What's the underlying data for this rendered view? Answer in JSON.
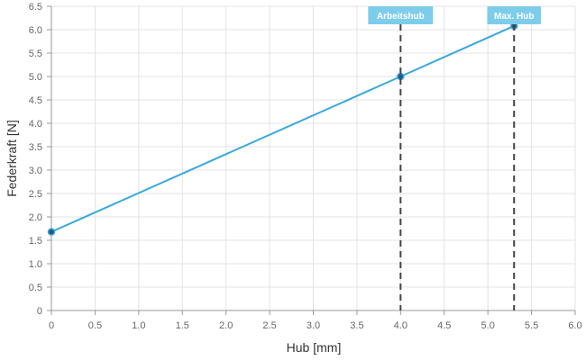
{
  "chart_data": {
    "type": "line",
    "xlabel": "Hub [mm]",
    "ylabel": "Federkraft [N]",
    "xlim": [
      0,
      6.0
    ],
    "ylim": [
      0,
      6.5
    ],
    "x_ticks": [
      "0",
      "0.5",
      "1.0",
      "1.5",
      "2.0",
      "2.5",
      "3.0",
      "3.5",
      "4.0",
      "4.5",
      "5.0",
      "5.5",
      "6.0"
    ],
    "y_ticks": [
      "0",
      "0.5",
      "1.0",
      "1.5",
      "2.0",
      "2.5",
      "3.0",
      "3.5",
      "4.0",
      "4.5",
      "5.0",
      "5.5",
      "6.0",
      "6.5"
    ],
    "grid": true,
    "series": [
      {
        "color": "#3aa8dc",
        "points": [
          {
            "x": 0,
            "y": 1.68
          },
          {
            "x": 4.0,
            "y": 5.0
          },
          {
            "x": 5.3,
            "y": 6.08
          }
        ]
      }
    ],
    "markers": [
      {
        "label": "Arbeitshub",
        "x": 4.0
      },
      {
        "label": "Max. Hub",
        "x": 5.3
      }
    ],
    "colors": {
      "line": "#3aa8dc",
      "point_fill": "#1f5f86",
      "grid": "#e3e3e3",
      "marker_line": "#444444",
      "marker_label_bg": "#7dcdea"
    }
  }
}
